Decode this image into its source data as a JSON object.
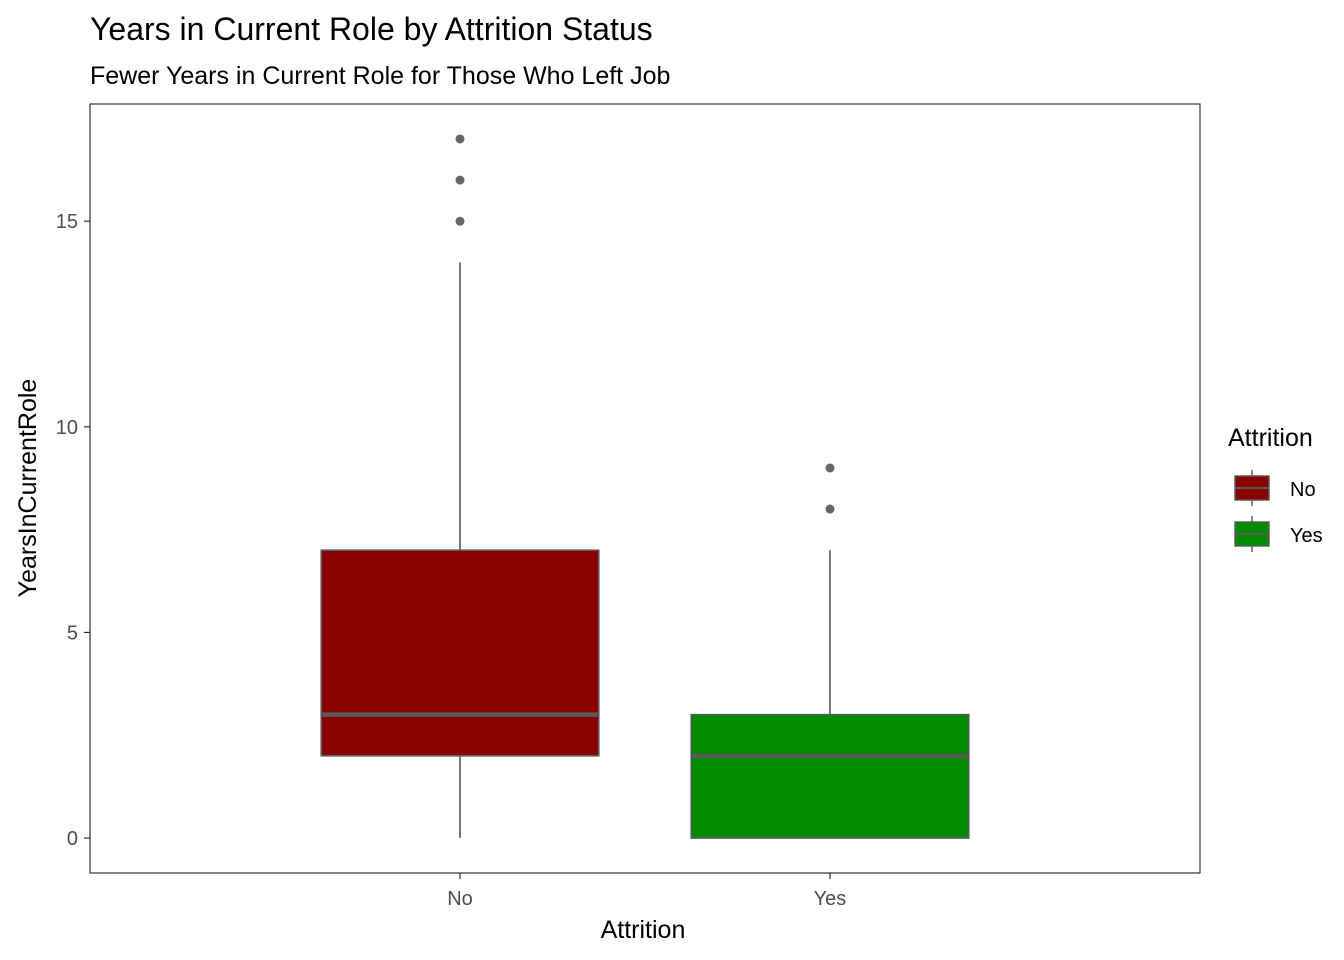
{
  "chart_data": {
    "type": "boxplot",
    "title": "Years in Current Role by Attrition Status",
    "subtitle": "Fewer Years in Current Role for Those Who Left Job",
    "xlabel": "Attrition",
    "ylabel": "YearsInCurrentRole",
    "categories": [
      "No",
      "Yes"
    ],
    "ylim": [
      -0.85,
      17.85
    ],
    "yticks": [
      0,
      5,
      10,
      15
    ],
    "boxes": [
      {
        "category": "No",
        "min": 0,
        "q1": 2,
        "median": 3,
        "q3": 7,
        "max": 14,
        "outliers": [
          15,
          16,
          17
        ],
        "color": "#8B0000"
      },
      {
        "category": "Yes",
        "min": 0,
        "q1": 0,
        "median": 2,
        "q3": 3,
        "max": 7,
        "outliers": [
          8,
          9
        ],
        "color": "#008B00"
      }
    ],
    "legend": {
      "title": "Attrition",
      "position": "right",
      "items": [
        {
          "label": "No",
          "color": "#8B0000"
        },
        {
          "label": "Yes",
          "color": "#008B00"
        }
      ]
    },
    "grid": false,
    "line_color": "#595959",
    "outlier_color": "#666666"
  }
}
